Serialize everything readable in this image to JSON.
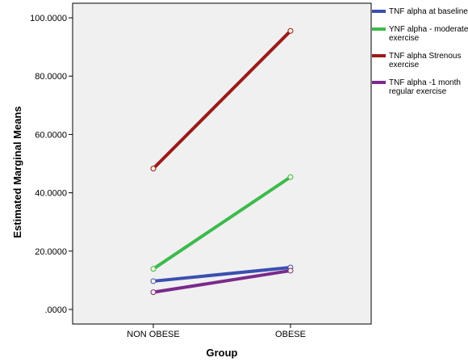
{
  "chart_data": {
    "type": "line",
    "title": "",
    "xlabel": "Group",
    "ylabel": "Estimated Marginal Means",
    "categories": [
      "NON OBESE",
      "OBESE"
    ],
    "ylim": [
      -5,
      105
    ],
    "yticks": [
      ".0000",
      "20.0000",
      "40.0000",
      "60.0000",
      "80.0000",
      "100.0000"
    ],
    "ytick_values": [
      0,
      20,
      40,
      60,
      80,
      100
    ],
    "grid": false,
    "legend_position": "right",
    "series": [
      {
        "name": "TNF alpha at baseline",
        "legend_lines": [
          "TNF alpha at baseline"
        ],
        "color": "#3b4fb0",
        "values": [
          9.7,
          14.4
        ]
      },
      {
        "name": "YNF alpha - moderate exercise",
        "legend_lines": [
          "YNF alpha - moderate",
          "exercise"
        ],
        "color": "#3cba4c",
        "values": [
          13.9,
          45.4
        ]
      },
      {
        "name": "TNF alpha Strenous exercise",
        "legend_lines": [
          "TNF alpha Strenous",
          "exercise"
        ],
        "color": "#9b1a1a",
        "values": [
          48.3,
          95.5
        ]
      },
      {
        "name": "TNF alpha -1 month regular exercise",
        "legend_lines": [
          "TNF alpha -1 month",
          "regular exercise"
        ],
        "color": "#7a2a8c",
        "values": [
          5.9,
          13.3
        ]
      }
    ],
    "plot_background": "#f0f0f0"
  }
}
